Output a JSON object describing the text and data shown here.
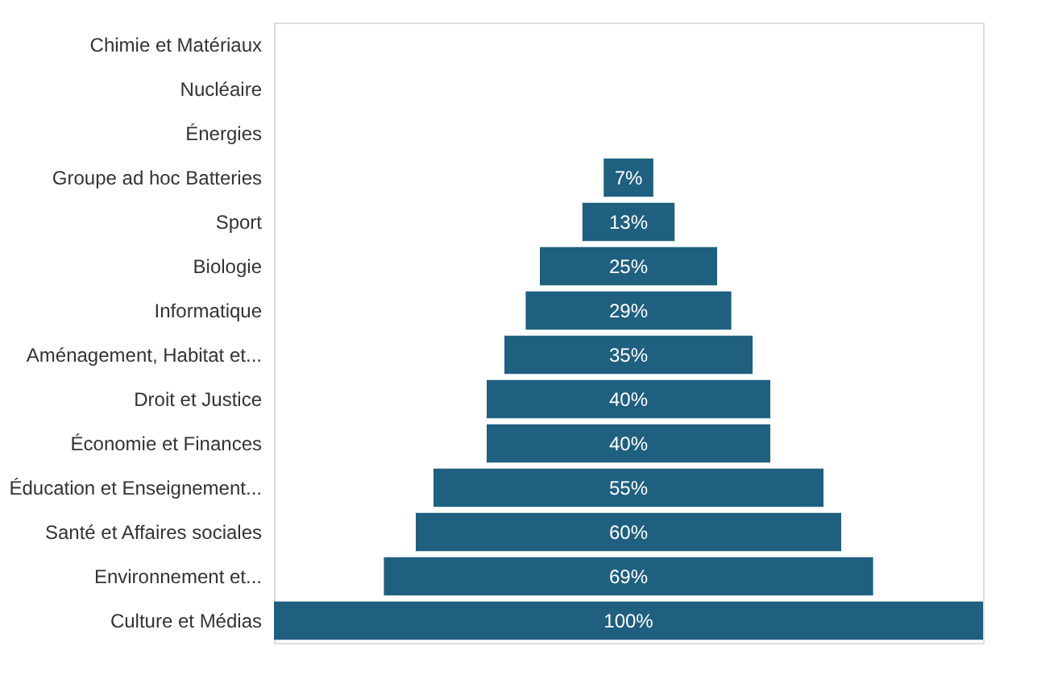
{
  "chart_data": {
    "type": "other",
    "categories": [
      "Chimie et Matériaux",
      "Nucléaire",
      "Énergies",
      "Groupe ad hoc Batteries",
      "Sport",
      "Biologie",
      "Informatique",
      "Aménagement, Habitat et...",
      "Droit et Justice",
      "Économie et Finances",
      "Éducation et Enseignement...",
      "Santé et Affaires sociales",
      "Environnement et...",
      "Culture et Médias"
    ],
    "values": [
      null,
      null,
      null,
      7,
      13,
      25,
      29,
      35,
      40,
      40,
      55,
      60,
      69,
      100
    ],
    "value_labels": [
      null,
      null,
      null,
      "7%",
      "13%",
      "25%",
      "29%",
      "35%",
      "40%",
      "40%",
      "55%",
      "60%",
      "69%",
      "100%"
    ],
    "color": "#1f5f80"
  }
}
